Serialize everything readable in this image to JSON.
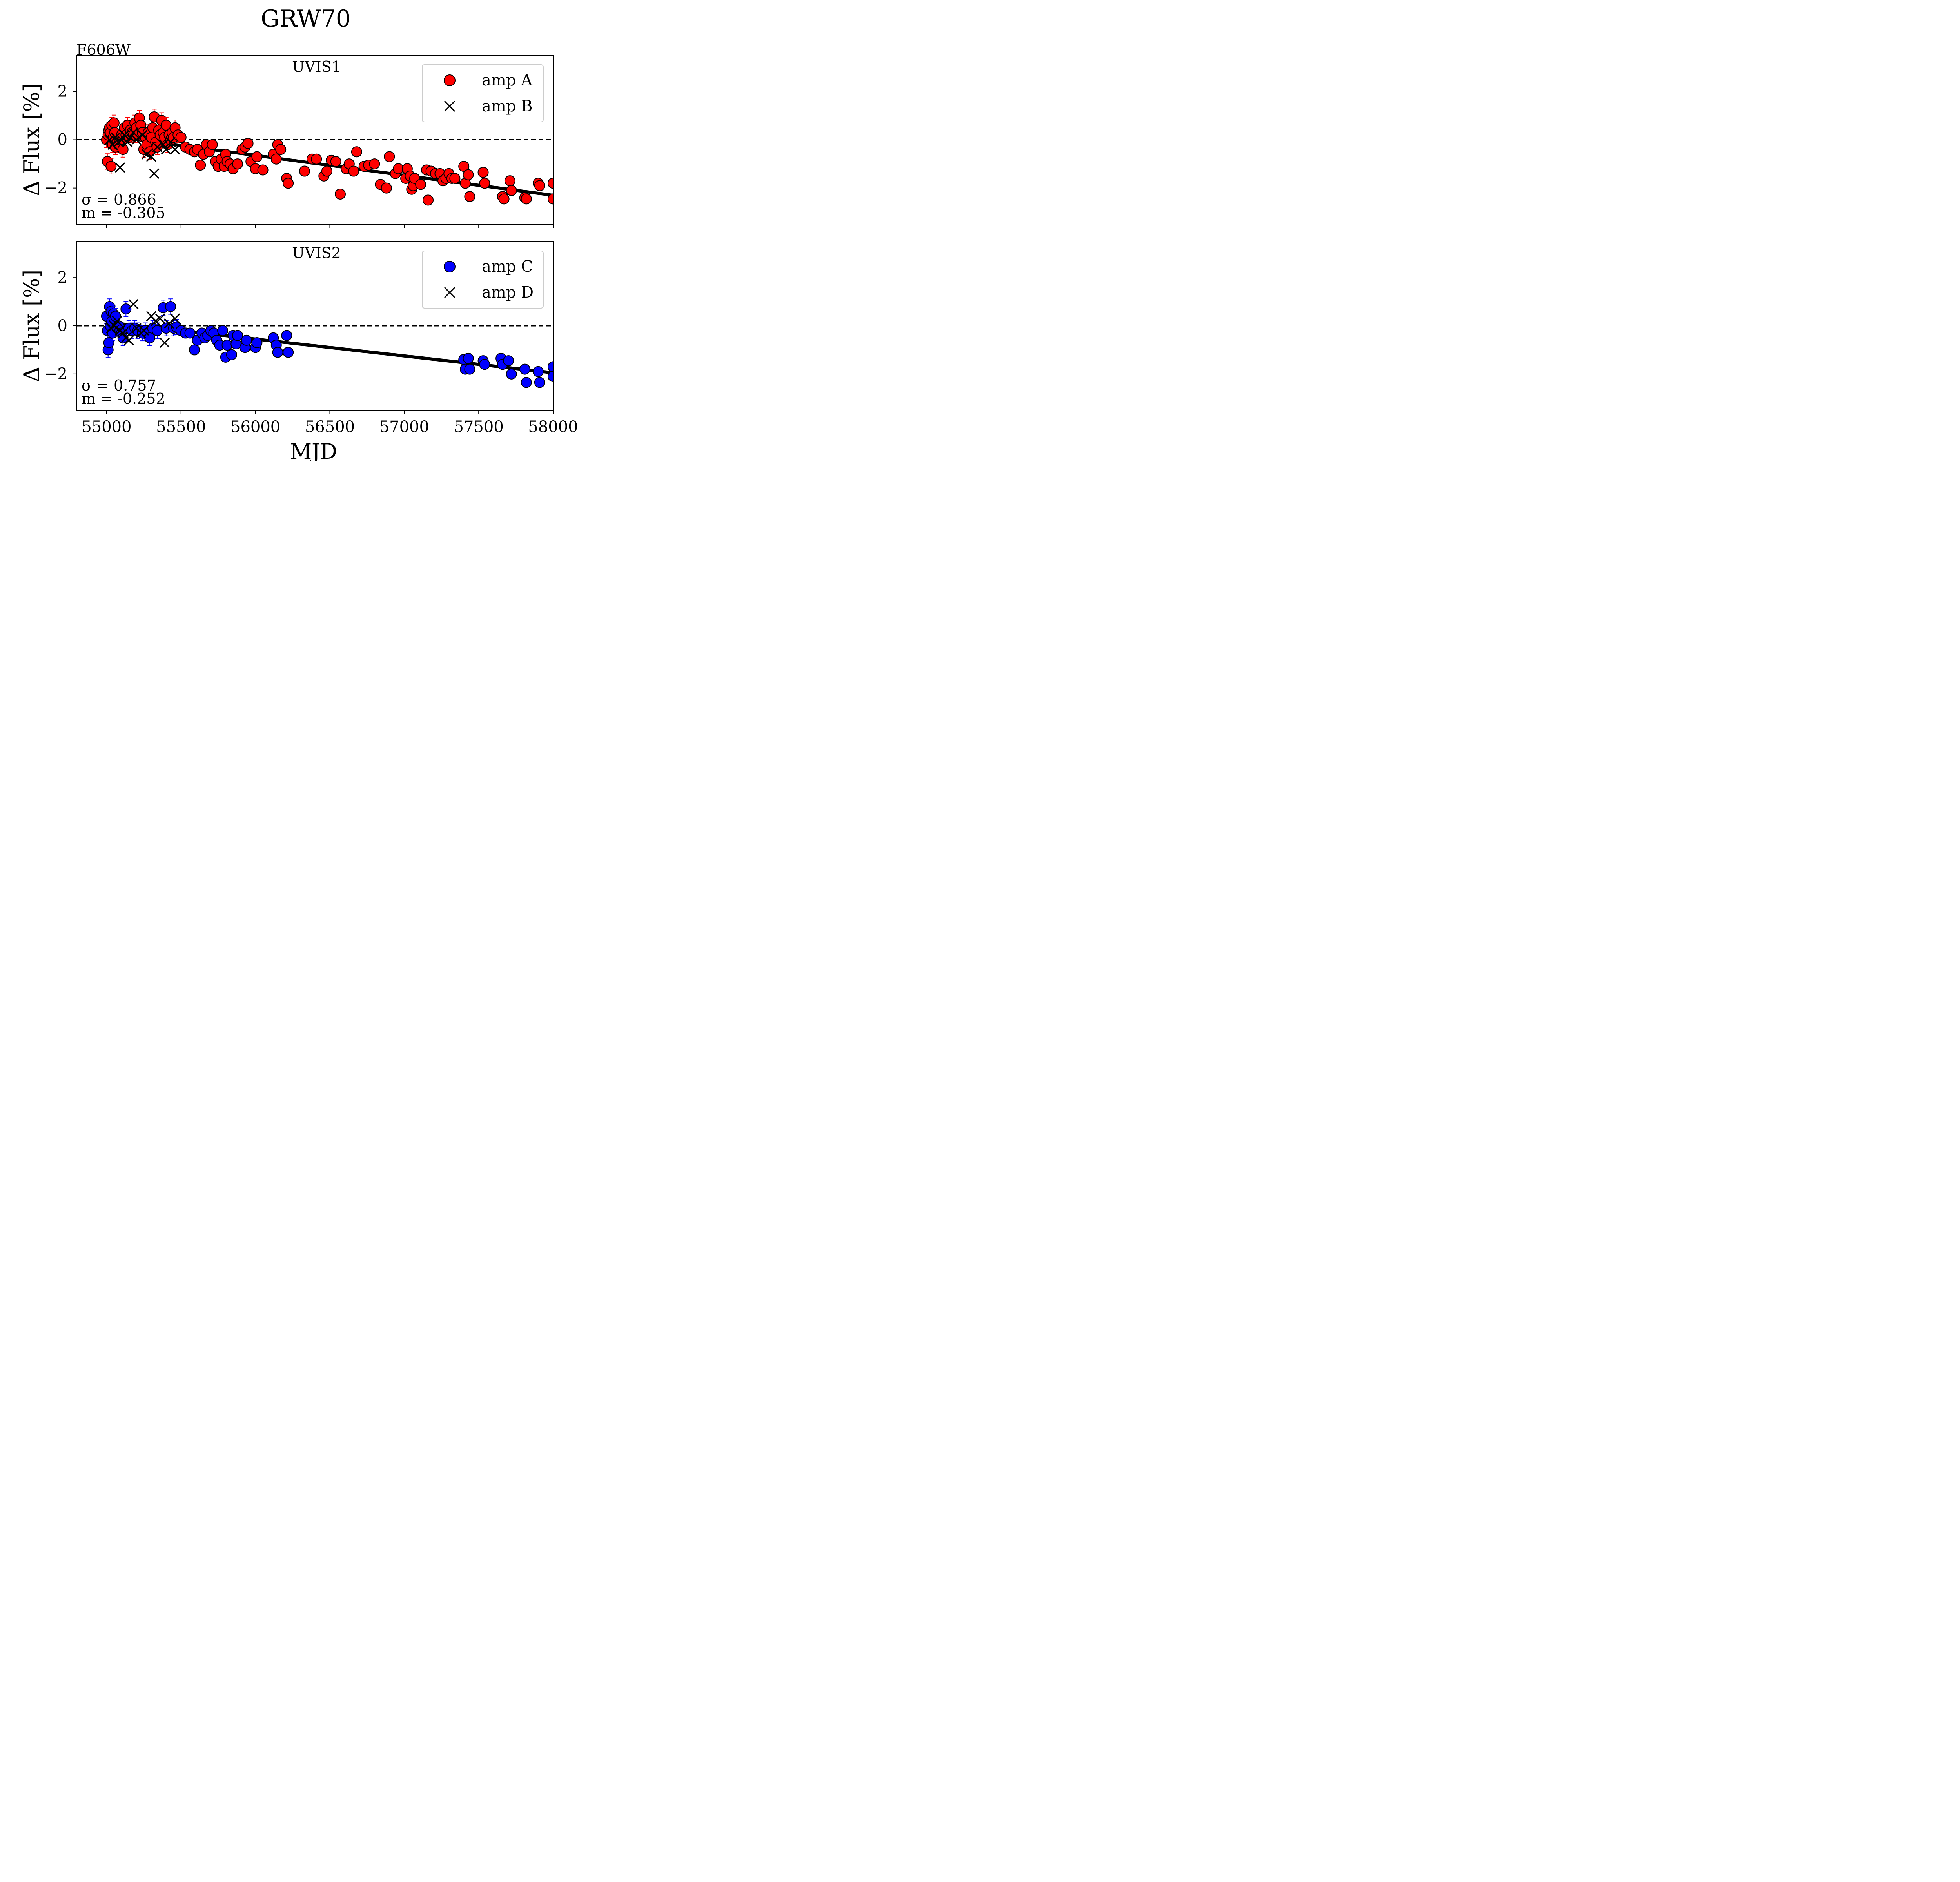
{
  "figure": {
    "title": "GRW70",
    "filter_label": "F606W",
    "xlabel": "MJD",
    "ylabel": "Δ Flux [%]"
  },
  "chart_data": [
    {
      "type": "scatter",
      "title": "UVIS1",
      "xlabel": "MJD",
      "ylabel": "Δ Flux [%]",
      "xlim": [
        54800,
        58000
      ],
      "ylim": [
        -3.5,
        3.5
      ],
      "xticks": [
        55000,
        55500,
        56000,
        56500,
        57000,
        57500,
        58000
      ],
      "yticks": [
        -2,
        0,
        2
      ],
      "ytick_labels": [
        "−2",
        "0",
        "2"
      ],
      "reference_line": 0,
      "legend_position": "upper-right",
      "stats": {
        "sigma_label": "σ = 0.866",
        "slope_label": "m = -0.305"
      },
      "fit_line": {
        "x": [
          55000,
          58000
        ],
        "y": [
          0.18,
          -2.3
        ]
      },
      "series": [
        {
          "name": "amp A",
          "marker": "circle",
          "color": "#ff0000",
          "points": [
            [
              55000,
              0.0
            ],
            [
              55005,
              -0.9
            ],
            [
              55010,
              0.2
            ],
            [
              55015,
              0.4
            ],
            [
              55020,
              0.5
            ],
            [
              55025,
              0.3
            ],
            [
              55030,
              -1.1
            ],
            [
              55035,
              0.6
            ],
            [
              55040,
              -0.2
            ],
            [
              55045,
              0.1
            ],
            [
              55050,
              0.7
            ],
            [
              55055,
              0.3
            ],
            [
              55060,
              -0.3
            ],
            [
              55070,
              -0.1
            ],
            [
              55080,
              -0.2
            ],
            [
              55090,
              0.0
            ],
            [
              55100,
              0.2
            ],
            [
              55110,
              -0.4
            ],
            [
              55120,
              0.5
            ],
            [
              55130,
              0.2
            ],
            [
              55140,
              0.6
            ],
            [
              55150,
              0.1
            ],
            [
              55160,
              0.4
            ],
            [
              55170,
              0.3
            ],
            [
              55180,
              0.2
            ],
            [
              55190,
              0.7
            ],
            [
              55200,
              0.5
            ],
            [
              55210,
              0.2
            ],
            [
              55220,
              0.9
            ],
            [
              55230,
              0.6
            ],
            [
              55240,
              0.3
            ],
            [
              55250,
              -0.4
            ],
            [
              55260,
              0.1
            ],
            [
              55270,
              -0.2
            ],
            [
              55280,
              0.3
            ],
            [
              55290,
              -0.5
            ],
            [
              55300,
              0.1
            ],
            [
              55310,
              0.5
            ],
            [
              55320,
              0.95
            ],
            [
              55330,
              -0.1
            ],
            [
              55340,
              -0.3
            ],
            [
              55350,
              0.4
            ],
            [
              55360,
              0.2
            ],
            [
              55370,
              0.8
            ],
            [
              55380,
              0.3
            ],
            [
              55390,
              0.1
            ],
            [
              55400,
              0.6
            ],
            [
              55410,
              -0.2
            ],
            [
              55420,
              0.2
            ],
            [
              55430,
              0.0
            ],
            [
              55440,
              0.3
            ],
            [
              55450,
              0.1
            ],
            [
              55460,
              0.5
            ],
            [
              55480,
              0.2
            ],
            [
              55500,
              0.1
            ],
            [
              55530,
              -0.3
            ],
            [
              55560,
              -0.4
            ],
            [
              55590,
              -0.5
            ],
            [
              55610,
              -0.4
            ],
            [
              55630,
              -1.05
            ],
            [
              55650,
              -0.6
            ],
            [
              55670,
              -0.2
            ],
            [
              55690,
              -0.5
            ],
            [
              55710,
              -0.2
            ],
            [
              55730,
              -0.9
            ],
            [
              55750,
              -1.1
            ],
            [
              55770,
              -0.8
            ],
            [
              55790,
              -1.1
            ],
            [
              55800,
              -0.6
            ],
            [
              55810,
              -0.9
            ],
            [
              55830,
              -1.0
            ],
            [
              55850,
              -1.2
            ],
            [
              55880,
              -1.0
            ],
            [
              55910,
              -0.4
            ],
            [
              55930,
              -0.3
            ],
            [
              55950,
              -0.15
            ],
            [
              55970,
              -0.9
            ],
            [
              56000,
              -1.2
            ],
            [
              56010,
              -0.7
            ],
            [
              56050,
              -1.25
            ],
            [
              56120,
              -0.6
            ],
            [
              56140,
              -0.8
            ],
            [
              56150,
              -0.2
            ],
            [
              56170,
              -0.4
            ],
            [
              56210,
              -1.6
            ],
            [
              56220,
              -1.8
            ],
            [
              56330,
              -1.3
            ],
            [
              56380,
              -0.8
            ],
            [
              56410,
              -0.8
            ],
            [
              56460,
              -1.5
            ],
            [
              56480,
              -1.3
            ],
            [
              56510,
              -0.85
            ],
            [
              56540,
              -0.9
            ],
            [
              56570,
              -2.25
            ],
            [
              56610,
              -1.2
            ],
            [
              56630,
              -1.0
            ],
            [
              56660,
              -1.3
            ],
            [
              56680,
              -0.5
            ],
            [
              56730,
              -1.1
            ],
            [
              56760,
              -1.05
            ],
            [
              56800,
              -1.0
            ],
            [
              56840,
              -1.85
            ],
            [
              56880,
              -2.0
            ],
            [
              56900,
              -0.7
            ],
            [
              56940,
              -1.4
            ],
            [
              56960,
              -1.2
            ],
            [
              57010,
              -1.6
            ],
            [
              57020,
              -1.2
            ],
            [
              57040,
              -1.5
            ],
            [
              57050,
              -2.05
            ],
            [
              57060,
              -1.9
            ],
            [
              57070,
              -1.6
            ],
            [
              57110,
              -1.85
            ],
            [
              57150,
              -1.25
            ],
            [
              57160,
              -2.5
            ],
            [
              57180,
              -1.3
            ],
            [
              57210,
              -1.4
            ],
            [
              57240,
              -1.4
            ],
            [
              57260,
              -1.7
            ],
            [
              57280,
              -1.6
            ],
            [
              57300,
              -1.4
            ],
            [
              57320,
              -1.6
            ],
            [
              57340,
              -1.6
            ],
            [
              57400,
              -1.1
            ],
            [
              57410,
              -1.8
            ],
            [
              57430,
              -1.45
            ],
            [
              57440,
              -2.35
            ],
            [
              57530,
              -1.35
            ],
            [
              57540,
              -1.8
            ],
            [
              57660,
              -2.35
            ],
            [
              57670,
              -2.45
            ],
            [
              57710,
              -1.7
            ],
            [
              57720,
              -2.1
            ],
            [
              57810,
              -2.4
            ],
            [
              57820,
              -2.45
            ],
            [
              57900,
              -1.8
            ],
            [
              57910,
              -1.9
            ],
            [
              58000,
              -1.8
            ],
            [
              58000,
              -2.45
            ]
          ]
        },
        {
          "name": "amp B",
          "marker": "x",
          "color": "#000000",
          "points": [
            [
              55020,
              0.0
            ],
            [
              55040,
              -0.2
            ],
            [
              55060,
              0.1
            ],
            [
              55080,
              -0.1
            ],
            [
              55090,
              -1.15
            ],
            [
              55100,
              0.0
            ],
            [
              55120,
              0.2
            ],
            [
              55140,
              -0.1
            ],
            [
              55160,
              0.1
            ],
            [
              55180,
              0.3
            ],
            [
              55200,
              0.0
            ],
            [
              55240,
              0.2
            ],
            [
              55270,
              -0.6
            ],
            [
              55300,
              -0.7
            ],
            [
              55320,
              -1.4
            ],
            [
              55340,
              -0.3
            ],
            [
              55380,
              -0.2
            ],
            [
              55400,
              -0.4
            ],
            [
              55430,
              -0.1
            ],
            [
              55460,
              -0.4
            ]
          ]
        }
      ]
    },
    {
      "type": "scatter",
      "title": "UVIS2",
      "xlabel": "MJD",
      "ylabel": "Δ Flux [%]",
      "xlim": [
        54800,
        58000
      ],
      "ylim": [
        -3.5,
        3.5
      ],
      "xticks": [
        55000,
        55500,
        56000,
        56500,
        57000,
        57500,
        58000
      ],
      "xtick_labels": [
        "55000",
        "55500",
        "56000",
        "56500",
        "57000",
        "57500",
        "58000"
      ],
      "yticks": [
        -2,
        0,
        2
      ],
      "ytick_labels": [
        "−2",
        "0",
        "2"
      ],
      "reference_line": 0,
      "legend_position": "upper-right",
      "stats": {
        "sigma_label": "σ = 0.757",
        "slope_label": "m = -0.252"
      },
      "fit_line": {
        "x": [
          55000,
          58000
        ],
        "y": [
          0.15,
          -1.95
        ]
      },
      "series": [
        {
          "name": "amp C",
          "marker": "circle",
          "color": "#0000ff",
          "points": [
            [
              55000,
              0.4
            ],
            [
              55005,
              -0.2
            ],
            [
              55010,
              -1.0
            ],
            [
              55015,
              -0.7
            ],
            [
              55020,
              0.8
            ],
            [
              55025,
              0.0
            ],
            [
              55030,
              0.6
            ],
            [
              55035,
              0.2
            ],
            [
              55040,
              -0.3
            ],
            [
              55045,
              0.5
            ],
            [
              55050,
              0.3
            ],
            [
              55060,
              0.4
            ],
            [
              55070,
              -0.1
            ],
            [
              55080,
              0.0
            ],
            [
              55090,
              -0.2
            ],
            [
              55100,
              -0.3
            ],
            [
              55110,
              -0.5
            ],
            [
              55130,
              0.7
            ],
            [
              55150,
              -0.1
            ],
            [
              55170,
              -0.2
            ],
            [
              55190,
              -0.1
            ],
            [
              55210,
              -0.2
            ],
            [
              55240,
              -0.3
            ],
            [
              55260,
              -0.2
            ],
            [
              55290,
              -0.5
            ],
            [
              55310,
              -0.1
            ],
            [
              55340,
              -0.2
            ],
            [
              55380,
              0.75
            ],
            [
              55400,
              -0.1
            ],
            [
              55430,
              0.8
            ],
            [
              55450,
              -0.1
            ],
            [
              55470,
              -0.05
            ],
            [
              55500,
              -0.2
            ],
            [
              55530,
              -0.3
            ],
            [
              55560,
              -0.3
            ],
            [
              55590,
              -1.0
            ],
            [
              55610,
              -0.6
            ],
            [
              55640,
              -0.3
            ],
            [
              55660,
              -0.5
            ],
            [
              55680,
              -0.4
            ],
            [
              55700,
              -0.2
            ],
            [
              55720,
              -0.3
            ],
            [
              55740,
              -0.6
            ],
            [
              55760,
              -0.8
            ],
            [
              55780,
              -0.2
            ],
            [
              55800,
              -1.3
            ],
            [
              55810,
              -0.8
            ],
            [
              55840,
              -1.2
            ],
            [
              55850,
              -0.4
            ],
            [
              55870,
              -0.75
            ],
            [
              55880,
              -0.4
            ],
            [
              55930,
              -0.9
            ],
            [
              55940,
              -0.6
            ],
            [
              56000,
              -0.9
            ],
            [
              56010,
              -0.7
            ],
            [
              56120,
              -0.5
            ],
            [
              56140,
              -0.8
            ],
            [
              56150,
              -1.1
            ],
            [
              56210,
              -0.4
            ],
            [
              56220,
              -1.1
            ],
            [
              57400,
              -1.4
            ],
            [
              57410,
              -1.8
            ],
            [
              57430,
              -1.35
            ],
            [
              57440,
              -1.8
            ],
            [
              57530,
              -1.45
            ],
            [
              57540,
              -1.6
            ],
            [
              57650,
              -1.35
            ],
            [
              57660,
              -1.6
            ],
            [
              57700,
              -1.45
            ],
            [
              57720,
              -2.0
            ],
            [
              57810,
              -1.8
            ],
            [
              57820,
              -2.35
            ],
            [
              57900,
              -1.9
            ],
            [
              57910,
              -2.35
            ],
            [
              58000,
              -1.7
            ],
            [
              58000,
              -2.1
            ]
          ]
        },
        {
          "name": "amp D",
          "marker": "x",
          "color": "#000000",
          "points": [
            [
              55030,
              -0.1
            ],
            [
              55050,
              0.0
            ],
            [
              55070,
              0.2
            ],
            [
              55090,
              -0.2
            ],
            [
              55110,
              -0.3
            ],
            [
              55130,
              -0.5
            ],
            [
              55150,
              -0.6
            ],
            [
              55180,
              0.9
            ],
            [
              55200,
              -0.1
            ],
            [
              55230,
              -0.3
            ],
            [
              55250,
              -0.2
            ],
            [
              55300,
              0.4
            ],
            [
              55330,
              0.2
            ],
            [
              55360,
              0.3
            ],
            [
              55390,
              -0.7
            ],
            [
              55420,
              0.1
            ],
            [
              55460,
              0.3
            ]
          ]
        }
      ]
    }
  ]
}
